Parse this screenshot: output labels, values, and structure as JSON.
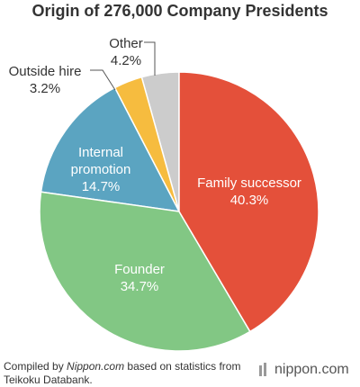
{
  "chart_data": {
    "type": "pie",
    "title": "Origin of 276,000 Company Presidents",
    "categories": [
      "Family successor",
      "Founder",
      "Internal promotion",
      "Outside hire",
      "Other"
    ],
    "values": [
      40.3,
      34.7,
      14.7,
      3.2,
      4.2
    ],
    "value_labels": [
      "40.3%",
      "34.7%",
      "14.7%",
      "3.2%",
      "4.2%"
    ],
    "colors": [
      "#e4503a",
      "#82c784",
      "#5ba4c1",
      "#f6bc3f",
      "#cccccc"
    ]
  },
  "footer": {
    "prefix": "Compiled by",
    "source": "Nippon.com",
    "suffix": "based on statistics from Teikoku Databank.",
    "logo": "nippon.com"
  }
}
